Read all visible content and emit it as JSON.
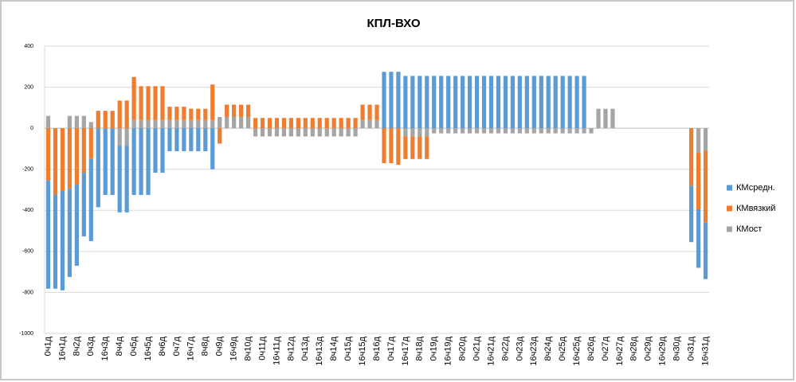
{
  "chart_data": {
    "type": "bar",
    "stacked": true,
    "title": "КПЛ-ВХО",
    "categories": [
      "0ч1д",
      null,
      "16ч1д",
      null,
      "8ч2д",
      null,
      "0ч3д",
      null,
      "16ч3д",
      null,
      "8ч4д",
      null,
      "0ч5д",
      null,
      "16ч5д",
      null,
      "8ч6д",
      null,
      "0ч7д",
      null,
      "16ч7д",
      null,
      "8ч8д",
      null,
      "0ч9д",
      null,
      "16ч9д",
      null,
      "8ч10д",
      null,
      "0ч11д",
      null,
      "16ч11д",
      null,
      "8ч12д",
      null,
      "0ч13д",
      null,
      "16ч13д",
      null,
      "8ч14д",
      null,
      "0ч15д",
      null,
      "16ч15д",
      null,
      "8ч16д",
      null,
      "0ч17д",
      null,
      "16ч17д",
      null,
      "8ч18д",
      null,
      "0ч19д",
      null,
      "16ч19д",
      null,
      "8ч20д",
      null,
      "0ч21д",
      null,
      "16ч21д",
      null,
      "8ч22д",
      null,
      "0ч23д",
      null,
      "16ч23д",
      null,
      "8ч24д",
      null,
      "0ч25д",
      null,
      "16ч25д",
      null,
      "8ч26д",
      null,
      "0ч27д",
      null,
      "16ч27д",
      null,
      "8ч28д",
      null,
      "0ч29д",
      null,
      "16ч29д",
      null,
      "8ч30д",
      null,
      "0ч31д",
      null,
      "16ч31д"
    ],
    "series": [
      {
        "name": "КМсредн.",
        "color": "#5b9bd5",
        "values": [
          -527,
          -457,
          -484,
          -430,
          -395,
          -310,
          -400,
          -385,
          -325,
          -325,
          -325,
          -325,
          -325,
          -325,
          -325,
          -217,
          -217,
          -112,
          -112,
          -112,
          -112,
          -112,
          -112,
          -200,
          0,
          0,
          0,
          0,
          0,
          0,
          0,
          0,
          0,
          0,
          0,
          0,
          0,
          0,
          0,
          0,
          0,
          0,
          0,
          0,
          0,
          0,
          0,
          275,
          275,
          275,
          255,
          255,
          255,
          255,
          255,
          255,
          255,
          255,
          255,
          255,
          255,
          255,
          255,
          255,
          255,
          255,
          255,
          255,
          255,
          255,
          255,
          255,
          255,
          255,
          255,
          255,
          0,
          0,
          0,
          0,
          0,
          0,
          0,
          0,
          0,
          0,
          0,
          0,
          0,
          0,
          -275,
          -285,
          -275
        ]
      },
      {
        "name": "КМвязкий",
        "color": "#ed7d31",
        "values": [
          -255,
          -325,
          -306,
          -295,
          -275,
          -217,
          -150,
          85,
          85,
          85,
          135,
          135,
          210,
          165,
          165,
          165,
          165,
          65,
          65,
          65,
          55,
          55,
          55,
          173,
          -75,
          60,
          60,
          60,
          60,
          50,
          50,
          50,
          50,
          50,
          50,
          50,
          50,
          50,
          50,
          50,
          50,
          50,
          50,
          50,
          75,
          75,
          75,
          -170,
          -170,
          -178,
          -110,
          -110,
          -110,
          -110,
          0,
          0,
          0,
          0,
          0,
          0,
          0,
          0,
          0,
          0,
          0,
          0,
          0,
          0,
          0,
          0,
          0,
          0,
          0,
          0,
          0,
          0,
          0,
          0,
          0,
          0,
          0,
          0,
          0,
          0,
          0,
          0,
          0,
          0,
          0,
          0,
          -280,
          -275,
          -350
        ]
      },
      {
        "name": "КМост",
        "color": "#a5a5a5",
        "values": [
          60,
          0,
          0,
          60,
          60,
          60,
          30,
          0,
          0,
          0,
          -85,
          -85,
          40,
          40,
          40,
          40,
          40,
          40,
          40,
          40,
          40,
          40,
          40,
          40,
          55,
          55,
          55,
          55,
          55,
          -40,
          -40,
          -40,
          -40,
          -40,
          -40,
          -40,
          -40,
          -40,
          -40,
          -40,
          -40,
          -40,
          -40,
          -40,
          40,
          40,
          40,
          0,
          0,
          0,
          -40,
          -40,
          -40,
          -40,
          -25,
          -25,
          -25,
          -25,
          -25,
          -25,
          -25,
          -25,
          -25,
          -25,
          -25,
          -25,
          -25,
          -25,
          -25,
          -25,
          -25,
          -25,
          -25,
          -25,
          -25,
          -25,
          -25,
          95,
          95,
          95,
          0,
          0,
          0,
          0,
          0,
          0,
          0,
          0,
          0,
          0,
          0,
          -120,
          -110
        ]
      }
    ],
    "ylim": [
      -1000,
      400
    ],
    "yticks": [
      400,
      200,
      0,
      -200,
      -400,
      -600,
      -800,
      -1000
    ],
    "grid": true,
    "legend_position": "right"
  }
}
